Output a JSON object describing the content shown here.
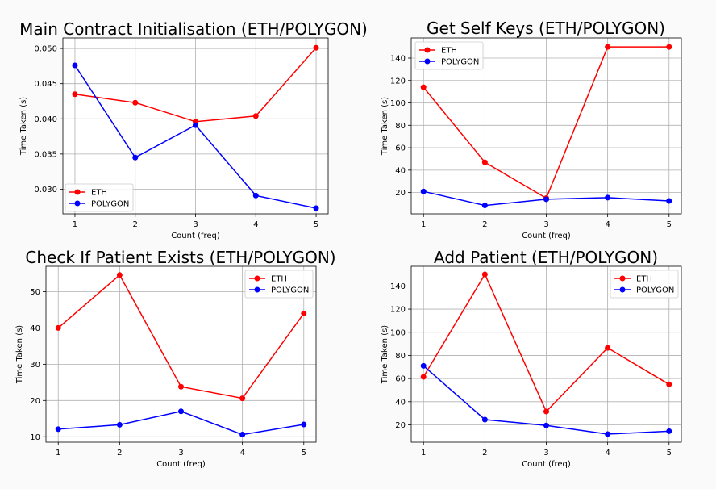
{
  "chart_data": [
    {
      "type": "line",
      "title": "Main Contract Initialisation (ETH/POLYGON)",
      "xlabel": "Count (freq)",
      "ylabel": "Time Taken (s)",
      "x": [
        1,
        2,
        3,
        4,
        5
      ],
      "xticks": [
        "1",
        "2",
        "3",
        "4",
        "5"
      ],
      "xlim": [
        0.8,
        5.2
      ],
      "ylim": [
        0.0265,
        0.0515
      ],
      "yticks": [
        0.03,
        0.035,
        0.04,
        0.045,
        0.05
      ],
      "ytick_labels": [
        "0.030",
        "0.035",
        "0.040",
        "0.045",
        "0.050"
      ],
      "grid": true,
      "legend_position": "lower-left",
      "series": [
        {
          "name": "ETH",
          "color": "#ff0000",
          "values": [
            0.0435,
            0.0423,
            0.0396,
            0.0404,
            0.0501
          ]
        },
        {
          "name": "POLYGON",
          "color": "#0000ff",
          "values": [
            0.0476,
            0.0345,
            0.0391,
            0.0291,
            0.0273
          ]
        }
      ]
    },
    {
      "type": "line",
      "title": "Get Self Keys (ETH/POLYGON)",
      "xlabel": "Count (freq)",
      "ylabel": "Time Taken (s)",
      "x": [
        1,
        2,
        3,
        4,
        5
      ],
      "xticks": [
        "1",
        "2",
        "3",
        "4",
        "5"
      ],
      "xlim": [
        0.8,
        5.2
      ],
      "ylim": [
        1,
        158
      ],
      "yticks": [
        20,
        40,
        60,
        80,
        100,
        120,
        140
      ],
      "ytick_labels": [
        "20",
        "40",
        "60",
        "80",
        "100",
        "120",
        "140"
      ],
      "grid": true,
      "legend_position": "upper-left",
      "series": [
        {
          "name": "ETH",
          "color": "#ff0000",
          "values": [
            114,
            47,
            15,
            150,
            150
          ]
        },
        {
          "name": "POLYGON",
          "color": "#0000ff",
          "values": [
            21,
            8.5,
            14,
            15.5,
            12.5
          ]
        }
      ]
    },
    {
      "type": "line",
      "title": "Check If Patient Exists (ETH/POLYGON)",
      "xlabel": "Count (freq)",
      "ylabel": "Time Taken (s)",
      "x": [
        1,
        2,
        3,
        4,
        5
      ],
      "xticks": [
        "1",
        "2",
        "3",
        "4",
        "5"
      ],
      "xlim": [
        0.8,
        5.2
      ],
      "ylim": [
        8.5,
        57
      ],
      "yticks": [
        10,
        20,
        30,
        40,
        50
      ],
      "ytick_labels": [
        "10",
        "20",
        "30",
        "40",
        "50"
      ],
      "grid": true,
      "legend_position": "upper-right",
      "series": [
        {
          "name": "ETH",
          "color": "#ff0000",
          "values": [
            40,
            54.6,
            23.8,
            20.6,
            44
          ]
        },
        {
          "name": "POLYGON",
          "color": "#0000ff",
          "values": [
            12.1,
            13.3,
            17,
            10.6,
            13.4
          ]
        }
      ]
    },
    {
      "type": "line",
      "title": "Add Patient (ETH/POLYGON)",
      "xlabel": "Count (freq)",
      "ylabel": "Time Taken (s)",
      "x": [
        1,
        2,
        3,
        4,
        5
      ],
      "xticks": [
        "1",
        "2",
        "3",
        "4",
        "5"
      ],
      "xlim": [
        0.8,
        5.2
      ],
      "ylim": [
        5,
        157
      ],
      "yticks": [
        20,
        40,
        60,
        80,
        100,
        120,
        140
      ],
      "ytick_labels": [
        "20",
        "40",
        "60",
        "80",
        "100",
        "120",
        "140"
      ],
      "grid": true,
      "legend_position": "upper-right",
      "series": [
        {
          "name": "ETH",
          "color": "#ff0000",
          "values": [
            61.5,
            150,
            31.5,
            86.5,
            55
          ]
        },
        {
          "name": "POLYGON",
          "color": "#0000ff",
          "values": [
            71,
            24.5,
            19.5,
            12,
            14.5
          ]
        }
      ]
    }
  ]
}
